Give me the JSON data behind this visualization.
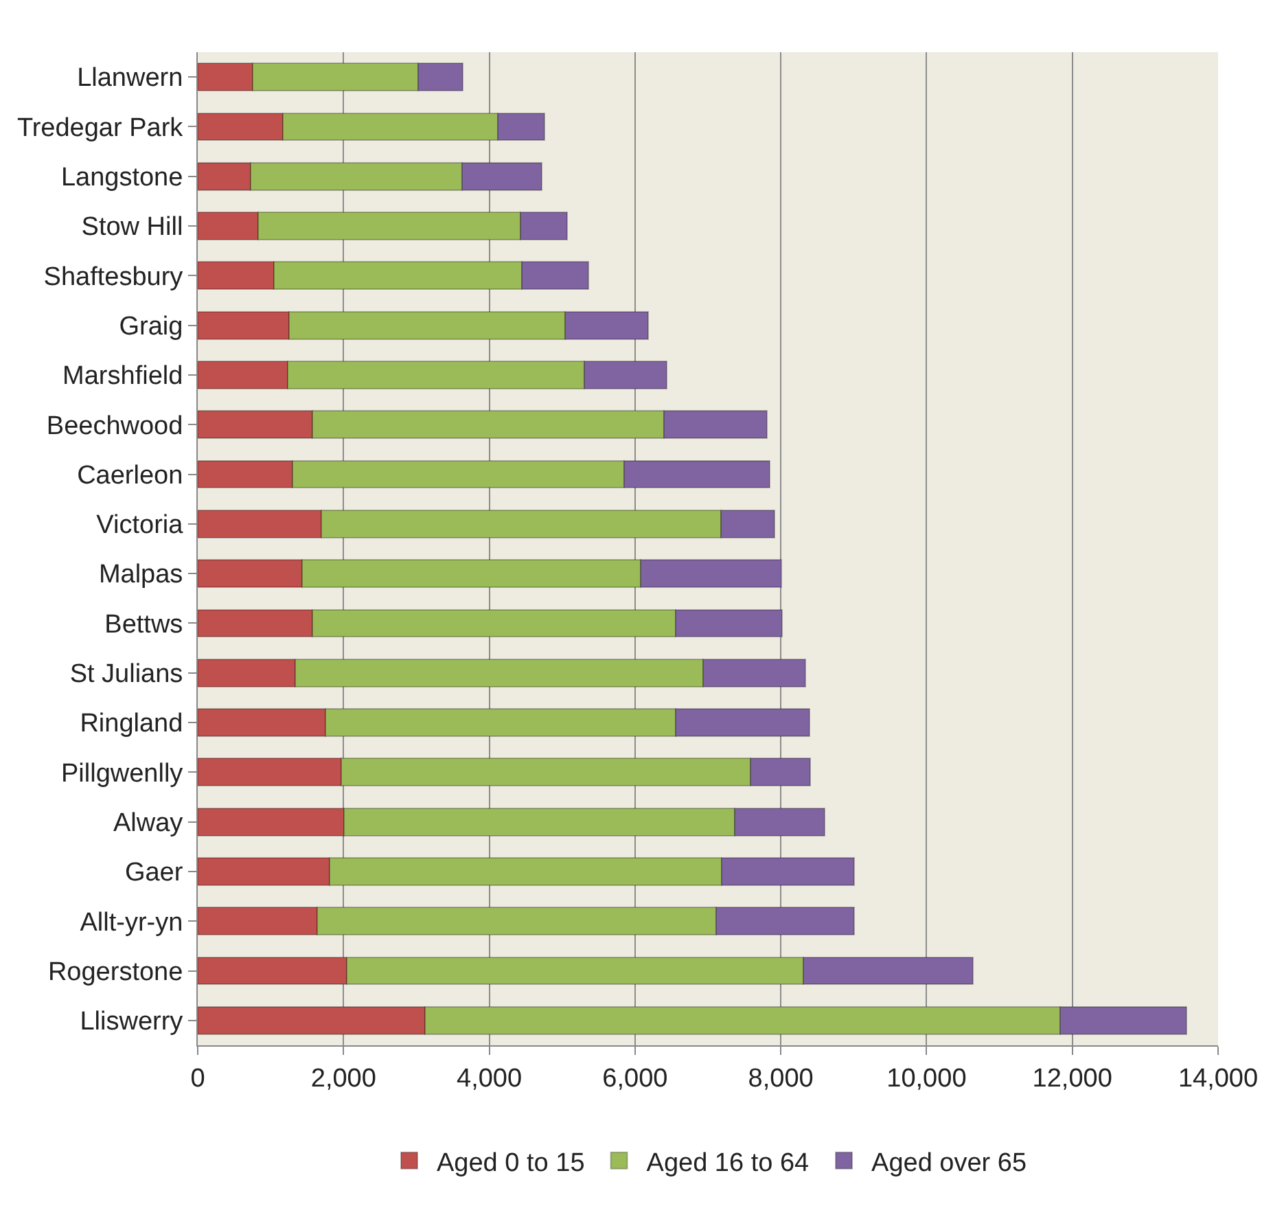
{
  "chart_data": {
    "type": "bar",
    "orientation": "horizontal",
    "stacked": true,
    "categories": [
      "Llanwern",
      "Tredegar Park",
      "Langstone",
      "Stow Hill",
      "Shaftesbury",
      "Graig",
      "Marshfield",
      "Beechwood",
      "Caerleon",
      "Victoria",
      "Malpas",
      "Bettws",
      "St Julians",
      "Ringland",
      "Pillgwenlly",
      "Alway",
      "Gaer",
      "Allt-yr-yn",
      "Rogerstone",
      "Lliswerry"
    ],
    "series": [
      {
        "name": "Aged 0 to 15",
        "color": "#c0504d",
        "values": [
          750,
          1170,
          730,
          830,
          1050,
          1250,
          1230,
          1570,
          1300,
          1700,
          1430,
          1570,
          1340,
          1750,
          1970,
          2010,
          1810,
          1640,
          2040,
          3120
        ]
      },
      {
        "name": "Aged 16 to 64",
        "color": "#9bbb59",
        "values": [
          2270,
          2950,
          2900,
          3600,
          3400,
          3790,
          4070,
          4830,
          4550,
          5480,
          4650,
          4990,
          5590,
          4810,
          5610,
          5360,
          5380,
          5470,
          6270,
          8710
        ]
      },
      {
        "name": "Aged over 65",
        "color": "#8064a2",
        "values": [
          620,
          640,
          1090,
          640,
          910,
          1140,
          1130,
          1410,
          2000,
          730,
          1930,
          1460,
          1410,
          1830,
          820,
          1230,
          1820,
          1900,
          2330,
          1740
        ]
      }
    ],
    "xlim": [
      0,
      14000
    ],
    "xticks": [
      {
        "value": 0,
        "label": "0"
      },
      {
        "value": 2000,
        "label": "2,000"
      },
      {
        "value": 4000,
        "label": "4,000"
      },
      {
        "value": 6000,
        "label": "6,000"
      },
      {
        "value": 8000,
        "label": "8,000"
      },
      {
        "value": 10000,
        "label": "10,000"
      },
      {
        "value": 12000,
        "label": "12,000"
      },
      {
        "value": 14000,
        "label": "14,000"
      }
    ],
    "grid": "x",
    "legend": "bottom"
  }
}
